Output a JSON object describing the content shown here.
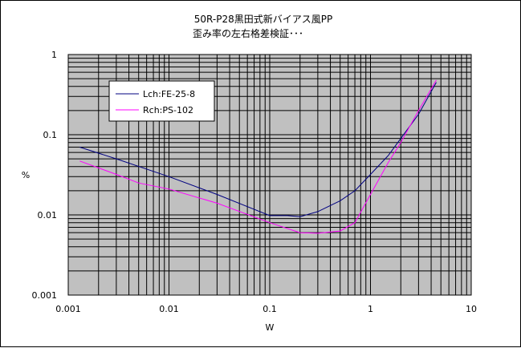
{
  "chart_data": {
    "type": "line",
    "title_lines": [
      "50R-P28黒田式新バイアス風PP",
      "歪み率の左右格差検証･･･"
    ],
    "xlabel": "W",
    "ylabel": "%",
    "xscale": "log",
    "yscale": "log",
    "xlim": [
      0.001,
      10
    ],
    "ylim": [
      0.001,
      1
    ],
    "x_tick_labels": [
      "0.001",
      "0.01",
      "0.1",
      "1",
      "10"
    ],
    "y_tick_labels": [
      "0.001",
      "0.01",
      "0.1",
      "1"
    ],
    "grid": true,
    "plot_background": "#c0c0c0",
    "legend_position": "upper-left",
    "series": [
      {
        "name": "Lch:FE-25-8",
        "color": "#000080",
        "points": [
          [
            0.0013,
            0.07
          ],
          [
            0.003,
            0.05
          ],
          [
            0.01,
            0.03
          ],
          [
            0.03,
            0.018
          ],
          [
            0.1,
            0.0098
          ],
          [
            0.15,
            0.0098
          ],
          [
            0.2,
            0.0095
          ],
          [
            0.3,
            0.011
          ],
          [
            0.5,
            0.015
          ],
          [
            0.7,
            0.02
          ],
          [
            1.0,
            0.032
          ],
          [
            1.5,
            0.055
          ],
          [
            2.0,
            0.09
          ],
          [
            3.0,
            0.18
          ],
          [
            4.5,
            0.45
          ]
        ]
      },
      {
        "name": "Rch:PS-102",
        "color": "#ff00ff",
        "points": [
          [
            0.0013,
            0.047
          ],
          [
            0.003,
            0.032
          ],
          [
            0.005,
            0.025
          ],
          [
            0.01,
            0.021
          ],
          [
            0.03,
            0.014
          ],
          [
            0.1,
            0.008
          ],
          [
            0.2,
            0.006
          ],
          [
            0.3,
            0.0059
          ],
          [
            0.5,
            0.0063
          ],
          [
            0.7,
            0.008
          ],
          [
            1.0,
            0.018
          ],
          [
            1.5,
            0.045
          ],
          [
            2.0,
            0.08
          ],
          [
            3.0,
            0.2
          ],
          [
            4.5,
            0.48
          ]
        ]
      }
    ]
  }
}
